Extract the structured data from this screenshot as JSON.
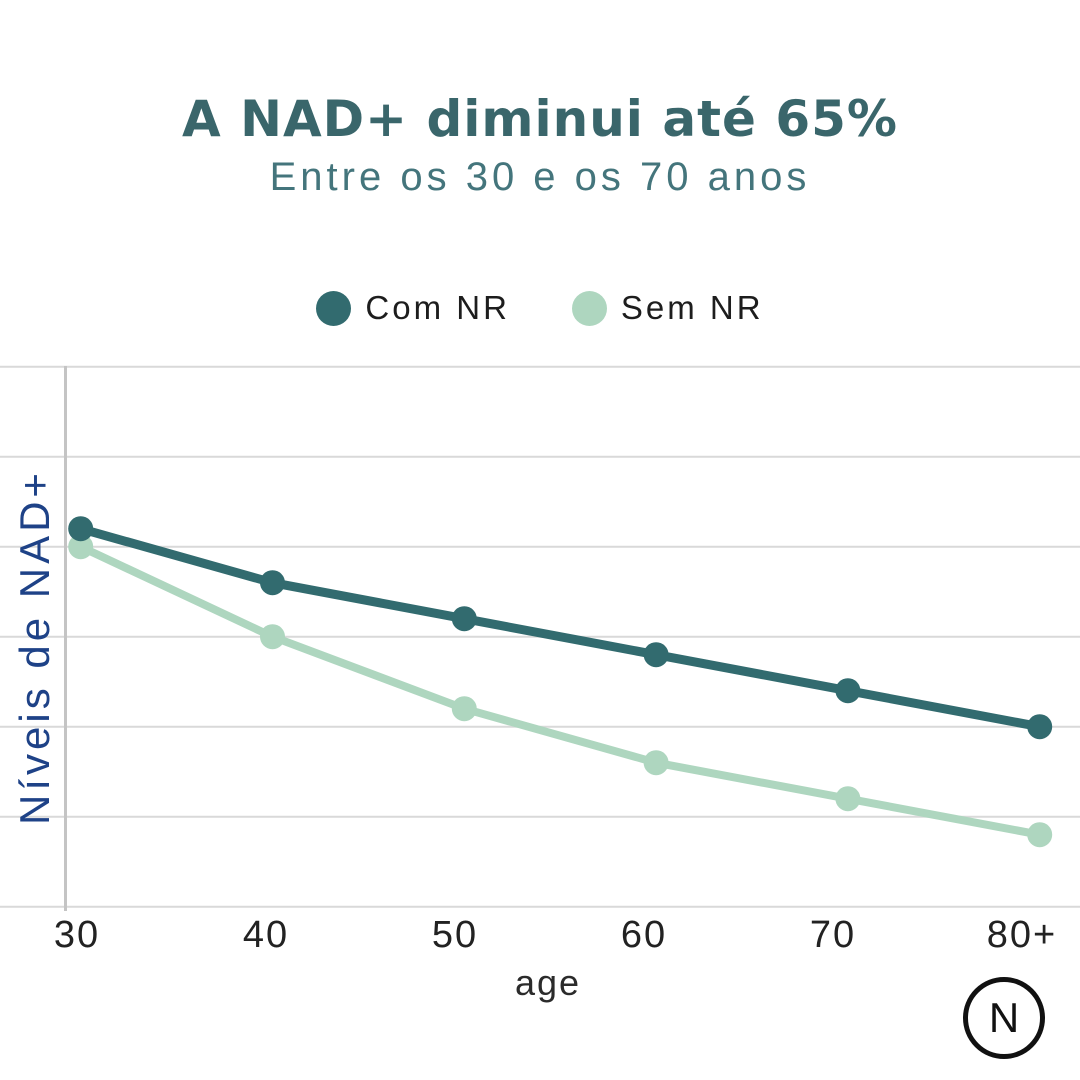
{
  "chart_data": {
    "type": "line",
    "title": "A NAD+ diminui até 65%",
    "subtitle": "Entre os 30 e os 70 anos",
    "categories": [
      "30",
      "40",
      "50",
      "60",
      "70",
      "80+"
    ],
    "series": [
      {
        "name": "Com NR",
        "color": "#326b6f",
        "values": [
          42,
          36,
          32,
          28,
          24,
          20
        ]
      },
      {
        "name": "Sem NR",
        "color": "#aed6bf",
        "values": [
          40,
          30,
          22,
          16,
          12,
          8
        ]
      }
    ],
    "xlabel": "age",
    "ylabel": "Níveis de NAD+",
    "ylim": [
      0,
      60
    ],
    "grid_step": 10,
    "grid": "horizontal",
    "legend_position": "top"
  },
  "logo": {
    "letter": "N"
  },
  "colors": {
    "background": "#ffffff",
    "title": "#3a666b",
    "subtitle": "#44757c",
    "y_label": "#1e4287",
    "gridline": "#d9d9d9",
    "axis_line": "#c4c4c4",
    "tick_text": "#222222",
    "legend_text": "#1d1d1d",
    "logo": "#111111"
  }
}
